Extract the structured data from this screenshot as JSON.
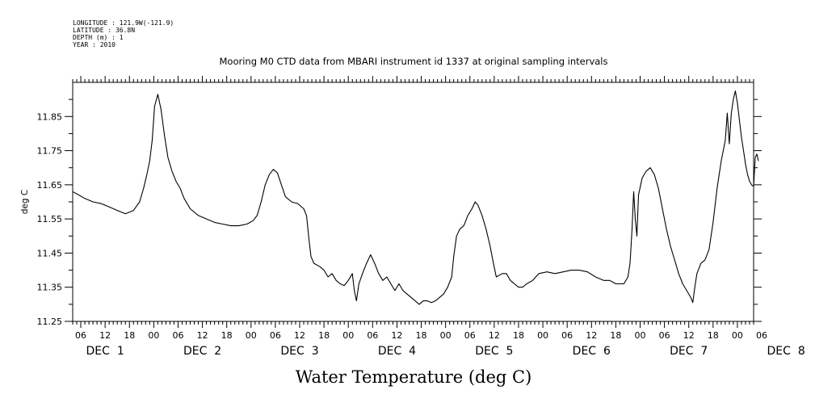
{
  "header": {
    "meta_lines": [
      "LONGITUDE : 121.9W(-121.9)",
      "LATITUDE : 36.8N",
      "DEPTH (m) : 1",
      "YEAR : 2010"
    ]
  },
  "chart_data": {
    "type": "line",
    "title": "Mooring M0 CTD data from MBARI instrument id 1337 at original sampling intervals",
    "xlabel": "Water Temperature (deg C)",
    "ylabel": "deg C",
    "ylim": [
      11.25,
      11.95
    ],
    "yticks": [
      "11.25",
      "11.35",
      "11.45",
      "11.55",
      "11.65",
      "11.75",
      "11.85"
    ],
    "xlim_hours": [
      4,
      172
    ],
    "x_unit": "hours since 00:00 DEC 1 2010",
    "hour_ticks": [
      "06",
      "12",
      "18",
      "00",
      "06",
      "12",
      "18",
      "00",
      "06",
      "12",
      "18",
      "00",
      "06",
      "12",
      "18",
      "00",
      "06",
      "12",
      "18",
      "00",
      "06",
      "12",
      "18",
      "00",
      "06",
      "12",
      "18",
      "00",
      "06"
    ],
    "day_labels": [
      "DEC  1",
      "DEC  2",
      "DEC  3",
      "DEC  4",
      "DEC  5",
      "DEC  6",
      "DEC  7",
      "DEC  8"
    ],
    "grid": false,
    "series": [
      {
        "color": "#000000",
        "points": [
          [
            4.0,
            11.63
          ],
          [
            5.5,
            11.62
          ],
          [
            7.0,
            11.61
          ],
          [
            9.0,
            11.6
          ],
          [
            11.0,
            11.595
          ],
          [
            13.0,
            11.585
          ],
          [
            15.0,
            11.575
          ],
          [
            17.0,
            11.565
          ],
          [
            19.0,
            11.575
          ],
          [
            20.5,
            11.6
          ],
          [
            21.5,
            11.64
          ],
          [
            22.3,
            11.68
          ],
          [
            23.0,
            11.72
          ],
          [
            23.6,
            11.78
          ],
          [
            24.2,
            11.88
          ],
          [
            25.0,
            11.915
          ],
          [
            25.8,
            11.87
          ],
          [
            26.7,
            11.79
          ],
          [
            27.5,
            11.73
          ],
          [
            28.5,
            11.69
          ],
          [
            29.5,
            11.66
          ],
          [
            30.5,
            11.64
          ],
          [
            31.5,
            11.61
          ],
          [
            33.0,
            11.58
          ],
          [
            35.0,
            11.56
          ],
          [
            37.0,
            11.55
          ],
          [
            39.0,
            11.54
          ],
          [
            41.0,
            11.535
          ],
          [
            43.0,
            11.53
          ],
          [
            45.0,
            11.53
          ],
          [
            47.0,
            11.535
          ],
          [
            48.5,
            11.545
          ],
          [
            49.5,
            11.56
          ],
          [
            50.5,
            11.6
          ],
          [
            51.5,
            11.65
          ],
          [
            52.5,
            11.68
          ],
          [
            53.5,
            11.695
          ],
          [
            54.5,
            11.685
          ],
          [
            55.5,
            11.65
          ],
          [
            56.5,
            11.615
          ],
          [
            58.0,
            11.6
          ],
          [
            59.5,
            11.595
          ],
          [
            61.0,
            11.58
          ],
          [
            61.7,
            11.56
          ],
          [
            62.3,
            11.49
          ],
          [
            62.8,
            11.44
          ],
          [
            63.5,
            11.42
          ],
          [
            65.0,
            11.41
          ],
          [
            66.0,
            11.4
          ],
          [
            67.0,
            11.38
          ],
          [
            68.0,
            11.39
          ],
          [
            69.0,
            11.37
          ],
          [
            70.0,
            11.36
          ],
          [
            71.0,
            11.355
          ],
          [
            72.0,
            11.37
          ],
          [
            73.0,
            11.39
          ],
          [
            73.5,
            11.34
          ],
          [
            74.0,
            11.31
          ],
          [
            74.6,
            11.36
          ],
          [
            75.5,
            11.39
          ],
          [
            76.5,
            11.42
          ],
          [
            77.5,
            11.445
          ],
          [
            78.5,
            11.42
          ],
          [
            79.5,
            11.39
          ],
          [
            80.5,
            11.37
          ],
          [
            81.5,
            11.38
          ],
          [
            82.5,
            11.36
          ],
          [
            83.5,
            11.34
          ],
          [
            84.5,
            11.36
          ],
          [
            85.5,
            11.34
          ],
          [
            86.5,
            11.33
          ],
          [
            87.5,
            11.32
          ],
          [
            88.5,
            11.31
          ],
          [
            89.5,
            11.3
          ],
          [
            90.5,
            11.31
          ],
          [
            91.5,
            11.31
          ],
          [
            92.5,
            11.305
          ],
          [
            93.5,
            11.31
          ],
          [
            94.5,
            11.32
          ],
          [
            95.5,
            11.33
          ],
          [
            96.5,
            11.35
          ],
          [
            97.5,
            11.38
          ],
          [
            98.0,
            11.44
          ],
          [
            98.7,
            11.5
          ],
          [
            99.5,
            11.52
          ],
          [
            100.5,
            11.53
          ],
          [
            101.5,
            11.56
          ],
          [
            102.5,
            11.58
          ],
          [
            103.3,
            11.6
          ],
          [
            104.0,
            11.59
          ],
          [
            105.0,
            11.56
          ],
          [
            106.0,
            11.52
          ],
          [
            107.0,
            11.47
          ],
          [
            107.8,
            11.42
          ],
          [
            108.5,
            11.38
          ],
          [
            110.0,
            11.39
          ],
          [
            111.0,
            11.39
          ],
          [
            112.0,
            11.37
          ],
          [
            113.0,
            11.36
          ],
          [
            114.0,
            11.35
          ],
          [
            115.0,
            11.35
          ],
          [
            116.0,
            11.36
          ],
          [
            117.5,
            11.37
          ],
          [
            119.0,
            11.39
          ],
          [
            121.0,
            11.395
          ],
          [
            123.0,
            11.39
          ],
          [
            125.0,
            11.395
          ],
          [
            127.0,
            11.4
          ],
          [
            129.0,
            11.4
          ],
          [
            131.0,
            11.395
          ],
          [
            133.0,
            11.38
          ],
          [
            135.0,
            11.37
          ],
          [
            136.5,
            11.37
          ],
          [
            138.0,
            11.36
          ],
          [
            140.0,
            11.36
          ],
          [
            141.0,
            11.38
          ],
          [
            141.5,
            11.42
          ],
          [
            142.0,
            11.52
          ],
          [
            142.4,
            11.63
          ],
          [
            142.8,
            11.55
          ],
          [
            143.2,
            11.5
          ],
          [
            143.6,
            11.62
          ],
          [
            144.5,
            11.67
          ],
          [
            145.5,
            11.69
          ],
          [
            146.5,
            11.7
          ],
          [
            147.5,
            11.68
          ],
          [
            148.5,
            11.64
          ],
          [
            149.5,
            11.58
          ],
          [
            150.5,
            11.52
          ],
          [
            151.5,
            11.47
          ],
          [
            152.5,
            11.43
          ],
          [
            153.5,
            11.39
          ],
          [
            154.5,
            11.36
          ],
          [
            155.5,
            11.34
          ],
          [
            156.5,
            11.32
          ],
          [
            157.0,
            11.305
          ],
          [
            157.5,
            11.35
          ],
          [
            158.0,
            11.39
          ],
          [
            159.0,
            11.42
          ],
          [
            160.0,
            11.43
          ],
          [
            161.0,
            11.46
          ],
          [
            162.0,
            11.54
          ],
          [
            163.0,
            11.64
          ],
          [
            164.0,
            11.72
          ],
          [
            165.0,
            11.78
          ],
          [
            165.5,
            11.86
          ],
          [
            166.0,
            11.77
          ],
          [
            166.5,
            11.86
          ],
          [
            167.0,
            11.9
          ],
          [
            167.5,
            11.925
          ],
          [
            168.0,
            11.89
          ],
          [
            168.5,
            11.84
          ],
          [
            169.0,
            11.79
          ],
          [
            169.5,
            11.75
          ],
          [
            170.0,
            11.71
          ],
          [
            170.5,
            11.68
          ],
          [
            171.0,
            11.66
          ],
          [
            171.5,
            11.65
          ],
          [
            172.0,
            11.645
          ],
          [
            172.4,
            11.73
          ],
          [
            172.8,
            11.74
          ],
          [
            173.2,
            11.72
          ]
        ]
      }
    ]
  }
}
